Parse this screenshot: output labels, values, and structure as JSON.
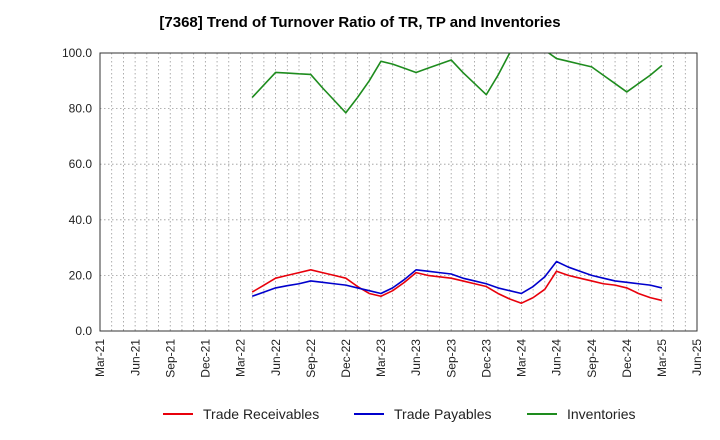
{
  "chart_data": {
    "type": "line",
    "title": "[7368]  Trend of Turnover Ratio of TR, TP and Inventories",
    "xlabel": "",
    "ylabel": "",
    "ylim": [
      0,
      100
    ],
    "y_ticks": [
      "0.0",
      "20.0",
      "40.0",
      "60.0",
      "80.0",
      "100.0"
    ],
    "x_ticks": [
      "Mar-21",
      "Jun-21",
      "Sep-21",
      "Dec-21",
      "Mar-22",
      "Jun-22",
      "Sep-22",
      "Dec-22",
      "Mar-23",
      "Jun-23",
      "Sep-23",
      "Dec-23",
      "Mar-24",
      "Jun-24",
      "Sep-24",
      "Dec-24",
      "Mar-25",
      "Jun-25"
    ],
    "x": [
      "Apr-22",
      "May-22",
      "Jun-22",
      "Jul-22",
      "Aug-22",
      "Sep-22",
      "Oct-22",
      "Nov-22",
      "Dec-22",
      "Jan-23",
      "Feb-23",
      "Mar-23",
      "Apr-23",
      "May-23",
      "Jun-23",
      "Jul-23",
      "Aug-23",
      "Sep-23",
      "Oct-23",
      "Nov-23",
      "Dec-23",
      "Jan-24",
      "Feb-24",
      "Mar-24",
      "Apr-24",
      "May-24",
      "Jun-24",
      "Jul-24",
      "Aug-24",
      "Sep-24",
      "Oct-24",
      "Nov-24",
      "Dec-24",
      "Jan-25",
      "Feb-25",
      "Mar-25"
    ],
    "series": [
      {
        "name": "Trade Receivables",
        "color": "#e8000b",
        "values": [
          14.0,
          16.5,
          19.0,
          20.0,
          21.0,
          22.0,
          21.0,
          20.0,
          19.0,
          16.0,
          13.5,
          12.5,
          14.5,
          17.5,
          21.0,
          20.0,
          19.5,
          19.0,
          18.0,
          17.0,
          16.0,
          13.5,
          11.5,
          10.0,
          12.0,
          15.0,
          21.5,
          20.0,
          19.0,
          18.0,
          17.0,
          16.5,
          15.5,
          13.5,
          12.0,
          11.0
        ]
      },
      {
        "name": "Trade Payables",
        "color": "#0000cc",
        "values": [
          12.5,
          14.0,
          15.5,
          16.3,
          17.0,
          18.0,
          17.5,
          17.0,
          16.5,
          15.5,
          14.5,
          13.5,
          15.5,
          18.5,
          22.0,
          21.5,
          21.0,
          20.5,
          19.0,
          18.0,
          17.0,
          15.5,
          14.5,
          13.5,
          16.0,
          19.5,
          25.0,
          23.0,
          21.5,
          20.0,
          19.0,
          18.0,
          17.5,
          17.0,
          16.5,
          15.5
        ]
      },
      {
        "name": "Inventories",
        "color": "#1e8c1e",
        "values": [
          84.0,
          88.5,
          93.0,
          92.8,
          92.5,
          92.3,
          87.5,
          83.0,
          78.5,
          84.0,
          90.0,
          97.0,
          96.0,
          94.5,
          93.0,
          94.5,
          96.0,
          97.5,
          93.0,
          89.0,
          85.0,
          92.0,
          100.0,
          104.0,
          104.0,
          101.0,
          98.0,
          97.0,
          96.0,
          95.0,
          92.0,
          89.0,
          86.0,
          89.0,
          92.0,
          95.5
        ]
      }
    ],
    "grid": true,
    "legend_position": "bottom"
  }
}
